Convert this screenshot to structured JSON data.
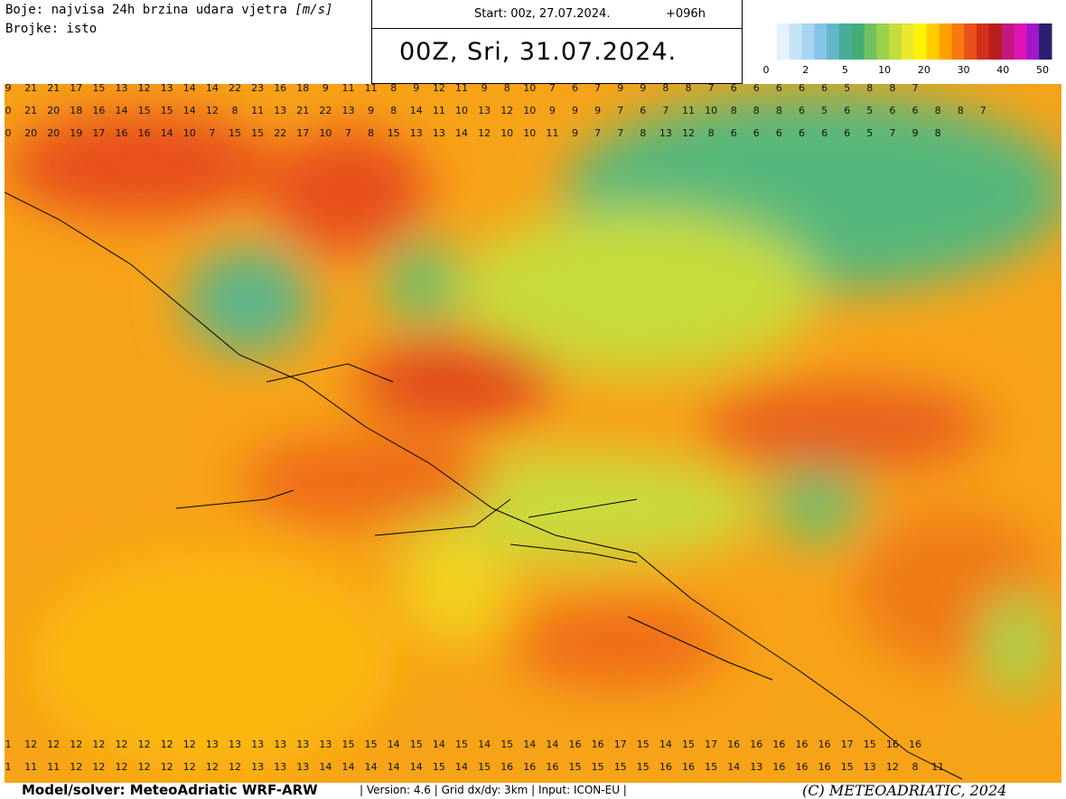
{
  "header": {
    "legend_text": "Boje: najvisa 24h brzina udara vjetra",
    "unit": "[m/s]",
    "numbers_text": "Brojke: isto",
    "start": "Start: 00z, 27.07.2024.",
    "lead": "+096h",
    "valid": "00Z, Sri, 31.07.2024."
  },
  "colorbar": {
    "colors": [
      "#ffffff",
      "#e3f1fb",
      "#c6e4f7",
      "#a8d5f1",
      "#86c4ea",
      "#62b6c9",
      "#47ad98",
      "#43ad78",
      "#6fc25f",
      "#9bd04a",
      "#c4dd3b",
      "#ebe92c",
      "#fff200",
      "#ffcc00",
      "#ffa200",
      "#f57a0f",
      "#e8501c",
      "#d3301a",
      "#b71f1a",
      "#c2187f",
      "#e014b5",
      "#a117c8",
      "#2a1f6e"
    ],
    "ticks": [
      0,
      2,
      5,
      10,
      20,
      30,
      40,
      50
    ]
  },
  "map": {
    "top_rows": [
      [
        9,
        21,
        21,
        17,
        15,
        13,
        12,
        13,
        14,
        14,
        22,
        23,
        16,
        18,
        9,
        11,
        11,
        8,
        9,
        12,
        11,
        9,
        8,
        10,
        7,
        6,
        7,
        9,
        9,
        8,
        8,
        7,
        6,
        6,
        6,
        6,
        6,
        5,
        8,
        8,
        7
      ],
      [
        0,
        21,
        20,
        18,
        16,
        14,
        15,
        15,
        14,
        12,
        8,
        11,
        13,
        21,
        22,
        13,
        9,
        8,
        14,
        11,
        10,
        13,
        12,
        10,
        9,
        9,
        9,
        7,
        6,
        7,
        11,
        10,
        8,
        8,
        8,
        6,
        5,
        6,
        5,
        6,
        6,
        8,
        8,
        7
      ],
      [
        0,
        20,
        20,
        19,
        17,
        16,
        16,
        14,
        10,
        7,
        15,
        15,
        22,
        17,
        10,
        7,
        8,
        15,
        13,
        13,
        14,
        12,
        10,
        10,
        11,
        9,
        7,
        7,
        8,
        13,
        12,
        8,
        6,
        6,
        6,
        6,
        6,
        6,
        5,
        7,
        9,
        8
      ]
    ],
    "bottom_rows": [
      [
        1,
        12,
        12,
        12,
        12,
        12,
        12,
        12,
        12,
        13,
        13,
        13,
        13,
        13,
        13,
        15,
        15,
        14,
        15,
        14,
        15,
        14,
        15,
        14,
        14,
        16,
        16,
        17,
        15,
        14,
        15,
        17,
        16,
        16,
        16,
        16,
        16,
        17,
        15,
        16,
        16
      ],
      [
        1,
        11,
        11,
        12,
        12,
        12,
        12,
        12,
        12,
        12,
        12,
        13,
        13,
        13,
        14,
        14,
        14,
        14,
        14,
        15,
        14,
        15,
        16,
        16,
        16,
        15,
        15,
        15,
        15,
        16,
        16,
        15,
        14,
        13,
        16,
        16,
        16,
        15,
        13,
        12,
        8,
        11
      ]
    ]
  },
  "footer": {
    "model": "Model/solver: MeteoAdriatic WRF-ARW",
    "info": "| Version: 4.6 | Grid dx/dy: 3km | Input: ICON-EU |",
    "copyright": "(C) METEOADRIATIC, 2024"
  }
}
